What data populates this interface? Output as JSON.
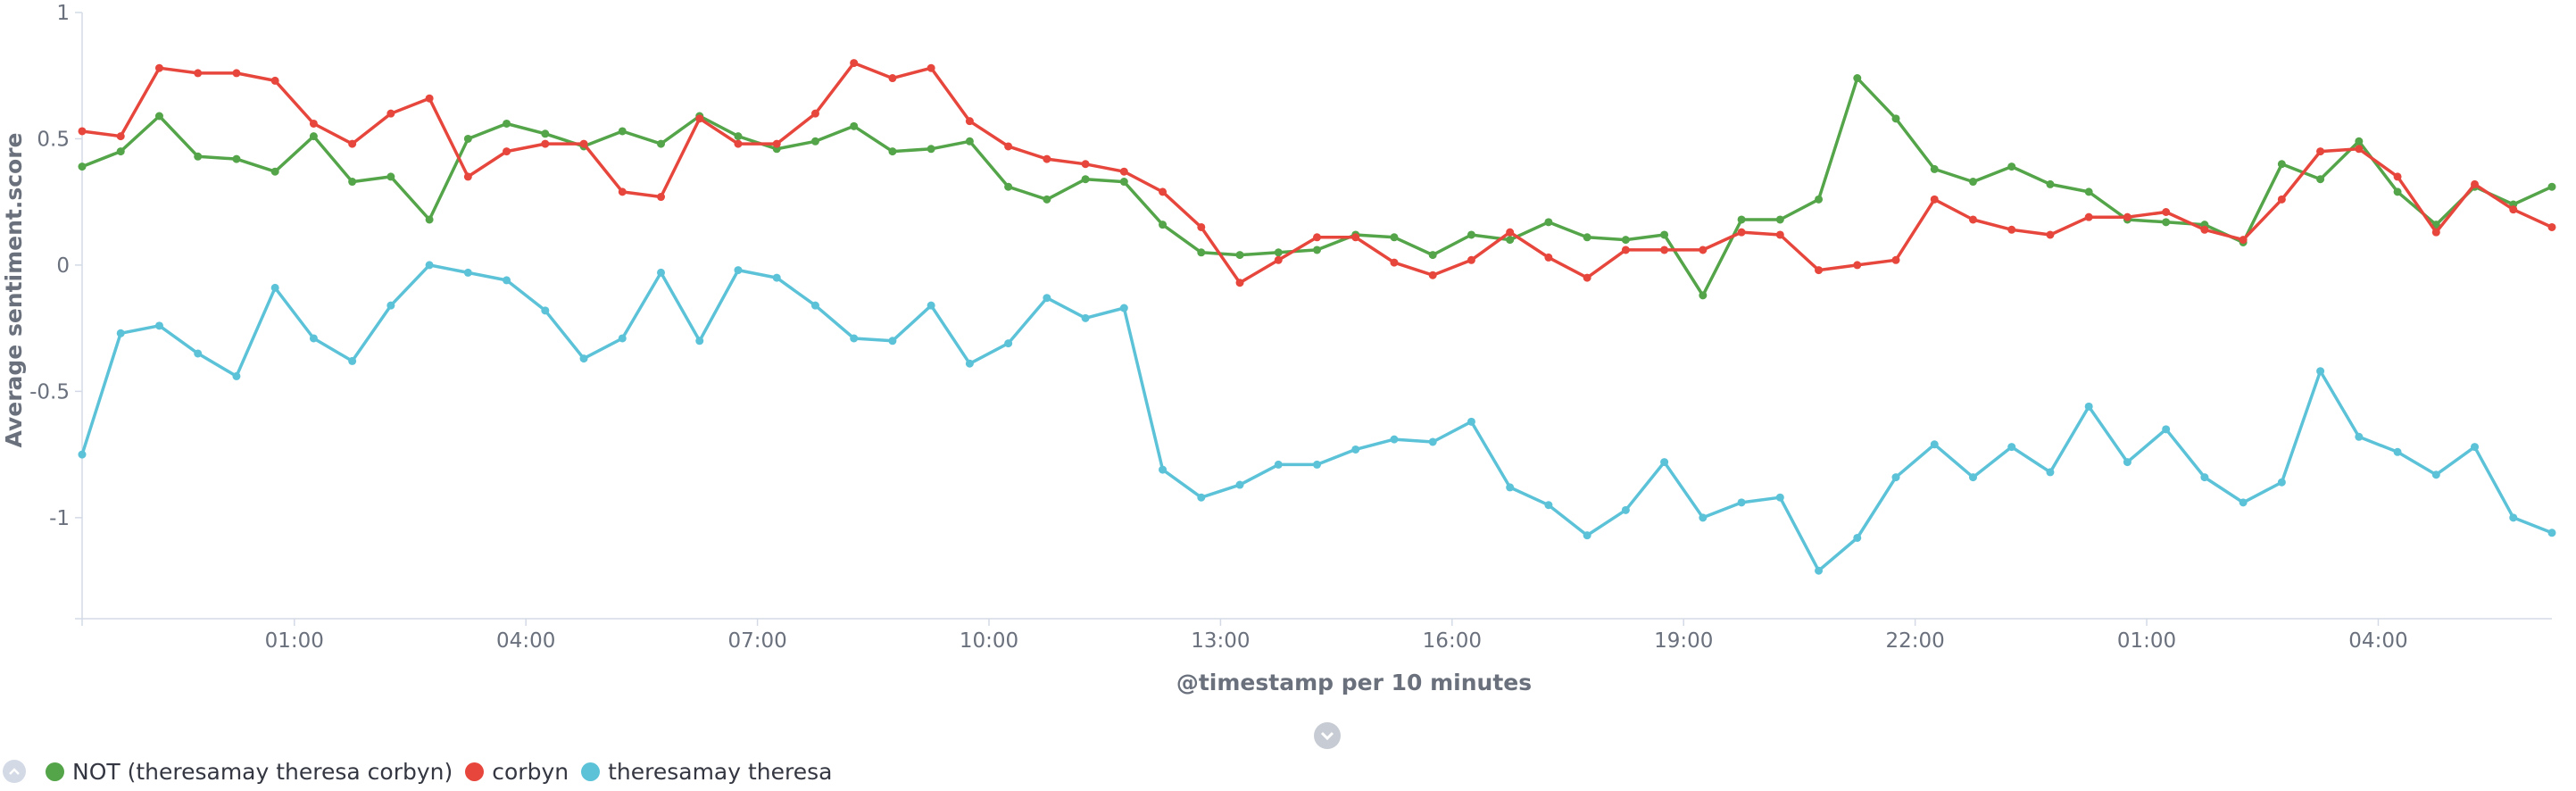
{
  "chart_data": {
    "type": "line",
    "xlabel": "@timestamp per 10 minutes",
    "ylabel": "Average sentiment.score",
    "ylim": [
      -1.4,
      1
    ],
    "y_ticks": [
      "1",
      "0.5",
      "0",
      "-0.5",
      "-1"
    ],
    "x_tick_labels": [
      "01:00",
      "04:00",
      "07:00",
      "10:00",
      "13:00",
      "16:00",
      "19:00",
      "22:00",
      "01:00",
      "04:00"
    ],
    "x_points": 65,
    "grid": false,
    "legend_position": "bottom-left",
    "series": [
      {
        "name": "NOT (theresamay theresa corbyn)",
        "color": "#54a449",
        "values": [
          0.39,
          0.45,
          0.59,
          0.43,
          0.42,
          0.37,
          0.51,
          0.33,
          0.35,
          0.18,
          0.5,
          0.56,
          0.52,
          0.47,
          0.53,
          0.48,
          0.59,
          0.51,
          0.46,
          0.49,
          0.55,
          0.45,
          0.46,
          0.49,
          0.31,
          0.26,
          0.34,
          0.33,
          0.16,
          0.05,
          0.04,
          0.05,
          0.06,
          0.12,
          0.11,
          0.04,
          0.12,
          0.1,
          0.17,
          0.11,
          0.1,
          0.12,
          -0.12,
          0.18,
          0.18,
          0.26,
          0.74,
          0.58,
          0.38,
          0.33,
          0.39,
          0.32,
          0.29,
          0.18,
          0.17,
          0.16,
          0.09,
          0.4,
          0.34,
          0.49,
          0.29,
          0.16,
          0.31,
          0.24,
          0.31
        ]
      },
      {
        "name": "corbyn",
        "color": "#e7463c",
        "values": [
          0.53,
          0.51,
          0.78,
          0.76,
          0.76,
          0.73,
          0.56,
          0.48,
          0.6,
          0.66,
          0.35,
          0.45,
          0.48,
          0.48,
          0.29,
          0.27,
          0.58,
          0.48,
          0.48,
          0.6,
          0.8,
          0.74,
          0.78,
          0.57,
          0.47,
          0.42,
          0.4,
          0.37,
          0.29,
          0.15,
          -0.07,
          0.02,
          0.11,
          0.11,
          0.01,
          -0.04,
          0.02,
          0.13,
          0.03,
          -0.05,
          0.06,
          0.06,
          0.06,
          0.13,
          0.12,
          -0.02,
          0.0,
          0.02,
          0.26,
          0.18,
          0.14,
          0.12,
          0.19,
          0.19,
          0.21,
          0.14,
          0.1,
          0.26,
          0.45,
          0.46,
          0.35,
          0.13,
          0.32,
          0.22,
          0.15
        ]
      },
      {
        "name": "theresamay theresa",
        "color": "#5bc2d8",
        "values": [
          -0.75,
          -0.27,
          -0.24,
          -0.35,
          -0.44,
          -0.09,
          -0.29,
          -0.38,
          -0.16,
          0.0,
          -0.03,
          -0.06,
          -0.18,
          -0.37,
          -0.29,
          -0.03,
          -0.3,
          -0.02,
          -0.05,
          -0.16,
          -0.29,
          -0.3,
          -0.16,
          -0.39,
          -0.31,
          -0.13,
          -0.21,
          -0.17,
          -0.81,
          -0.92,
          -0.87,
          -0.79,
          -0.79,
          -0.73,
          -0.69,
          -0.7,
          -0.62,
          -0.88,
          -0.95,
          -1.07,
          -0.97,
          -0.78,
          -1.0,
          -0.94,
          -0.92,
          -1.21,
          -1.08,
          -0.84,
          -0.71,
          -0.84,
          -0.72,
          -0.82,
          -0.56,
          -0.78,
          -0.65,
          -0.84,
          -0.94,
          -0.86,
          -0.42,
          -0.68,
          -0.74,
          -0.83,
          -0.72,
          -1.0,
          -1.06
        ]
      }
    ]
  },
  "legend": {
    "items": [
      {
        "label": "NOT (theresamay theresa corbyn)",
        "color": "#54a449"
      },
      {
        "label": "corbyn",
        "color": "#e7463c"
      },
      {
        "label": "theresamay theresa",
        "color": "#5bc2d8"
      }
    ]
  }
}
